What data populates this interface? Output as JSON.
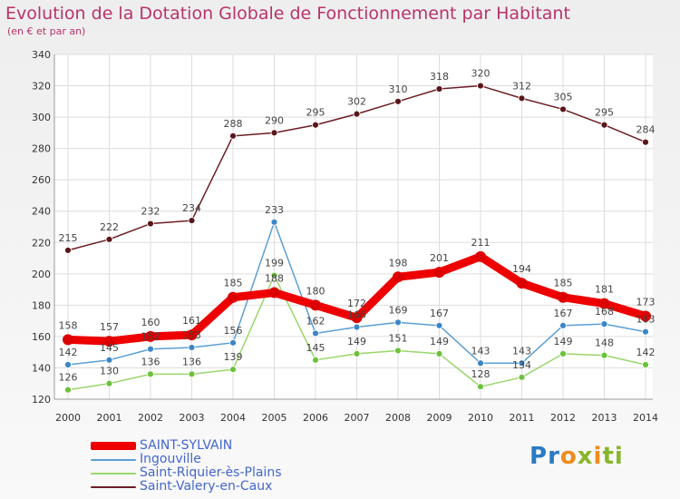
{
  "title": "Evolution de la Dotation Globale de Fonctionnement par Habitant",
  "subtitle": "(en € et par an)",
  "logo_text": "Proxiti",
  "chart_data": {
    "type": "line",
    "title": "Evolution de la Dotation Globale de Fonctionnement par Habitant",
    "subtitle": "(en € et par an)",
    "xlabel": "",
    "ylabel": "",
    "ylim": [
      120,
      340
    ],
    "yticks": [
      120,
      140,
      160,
      180,
      200,
      220,
      240,
      260,
      280,
      300,
      320,
      340
    ],
    "grid": true,
    "legend_position": "bottom-left",
    "categories": [
      "2000",
      "2001",
      "2002",
      "2003",
      "2004",
      "2005",
      "2006",
      "2007",
      "2008",
      "2009",
      "2010",
      "2011",
      "2012",
      "2013",
      "2014"
    ],
    "series": [
      {
        "name": "Saint-Valery-en-Caux",
        "color": "#6b1e24",
        "marker": "#5a161b",
        "values": [
          215,
          222,
          232,
          234,
          288,
          290,
          295,
          302,
          310,
          318,
          320,
          312,
          305,
          295,
          284
        ],
        "labels": [
          "215",
          "222",
          "232",
          "234",
          "288",
          "290",
          "295",
          "302",
          "310",
          "318",
          "320",
          "312",
          "305",
          "295",
          "284"
        ]
      },
      {
        "name": "Saint-Riquier-ès-Plains",
        "color": "#9ad66b",
        "marker": "#6cc23a",
        "values": [
          126,
          130,
          136,
          136,
          139,
          199,
          145,
          149,
          151,
          149,
          128,
          134,
          149,
          148,
          142
        ],
        "labels": [
          "126",
          "130",
          "136",
          "136",
          "139",
          "199",
          "145",
          "149",
          "151",
          "149",
          "128",
          "134",
          "149",
          "148",
          "142"
        ]
      },
      {
        "name": "Ingouville",
        "color": "#5a9fd4",
        "marker": "#3a86c8",
        "values": [
          142,
          145,
          152,
          153,
          156,
          233,
          162,
          166,
          169,
          167,
          143,
          143,
          167,
          168,
          163
        ],
        "labels": [
          "142",
          "145",
          "152",
          "153",
          "156",
          "233",
          "162",
          "166",
          "169",
          "167",
          "143",
          "143",
          "167",
          "168",
          "163"
        ]
      },
      {
        "name": "SAINT-SYLVAIN",
        "color": "#ee0000",
        "marker": "#dd0000",
        "thick": true,
        "values": [
          158,
          157,
          160,
          161,
          185,
          188,
          180,
          172,
          198,
          201,
          211,
          194,
          185,
          181,
          173
        ],
        "labels": [
          "158",
          "157",
          "160",
          "161",
          "185",
          "188",
          "180",
          "172",
          "198",
          "201",
          "211",
          "194",
          "185",
          "181",
          "173"
        ]
      }
    ],
    "legend_order": [
      "SAINT-SYLVAIN",
      "Ingouville",
      "Saint-Riquier-ès-Plains",
      "Saint-Valery-en-Caux"
    ]
  }
}
